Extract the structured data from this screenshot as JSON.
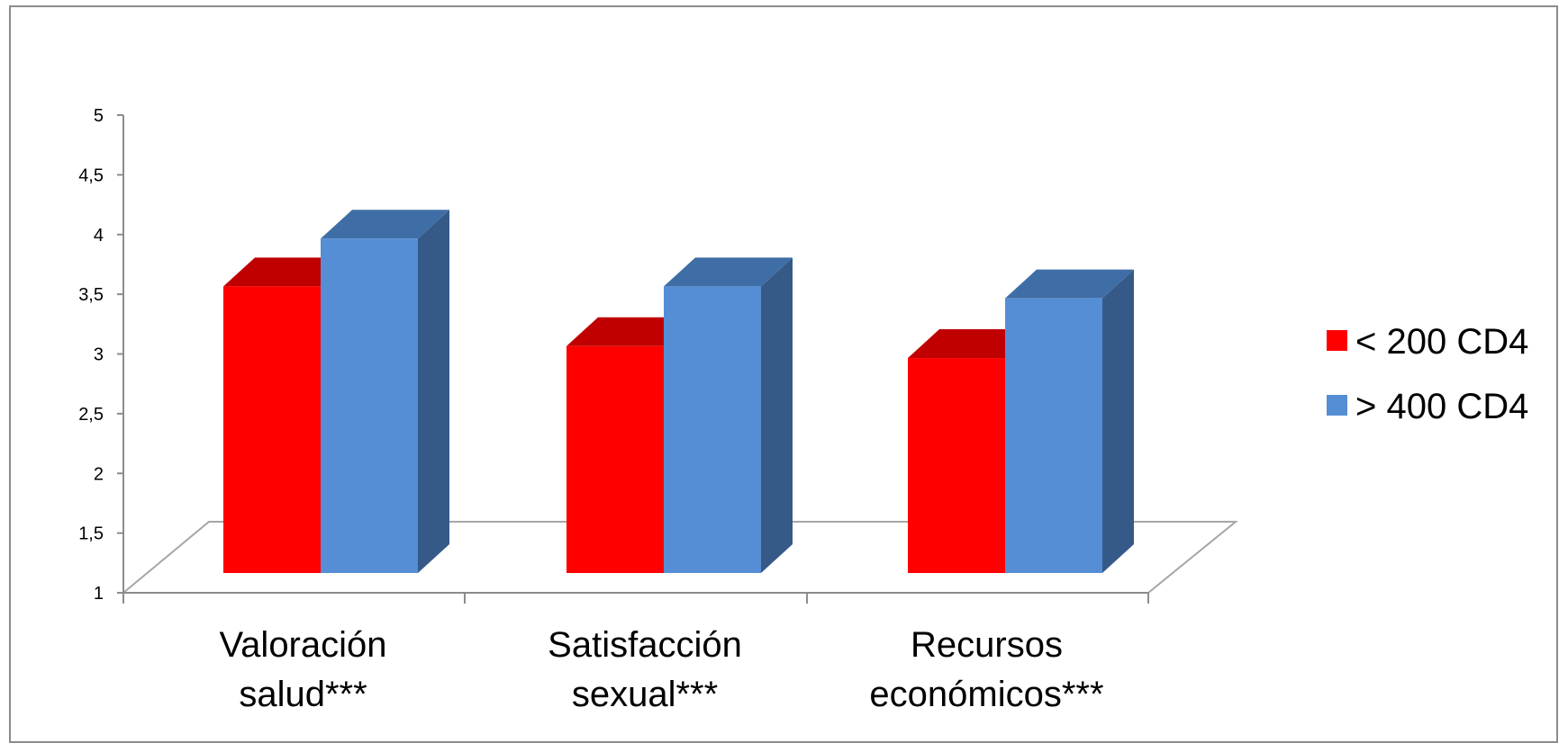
{
  "chart_data": {
    "type": "bar",
    "three_d": true,
    "categories": [
      [
        "Valoración",
        "salud***"
      ],
      [
        "Satisfacción",
        "sexual***"
      ],
      [
        "Recursos",
        "económicos***"
      ]
    ],
    "series": [
      {
        "name": "< 200 CD4",
        "values": [
          3.4,
          2.9,
          2.8
        ],
        "color": "#ff0000",
        "top_color": "#c00000",
        "side_color": "#c00000"
      },
      {
        "name": "> 400 CD4",
        "values": [
          3.8,
          3.4,
          3.3
        ],
        "color": "#558ed5",
        "top_color": "#3f6ea6",
        "side_color": "#365a88"
      }
    ],
    "ylim": [
      1,
      5
    ],
    "yticks": [
      "1",
      "1,5",
      "2",
      "2,5",
      "3",
      "3,5",
      "4",
      "4,5",
      "5"
    ],
    "grid": false,
    "legend_position": "right"
  }
}
